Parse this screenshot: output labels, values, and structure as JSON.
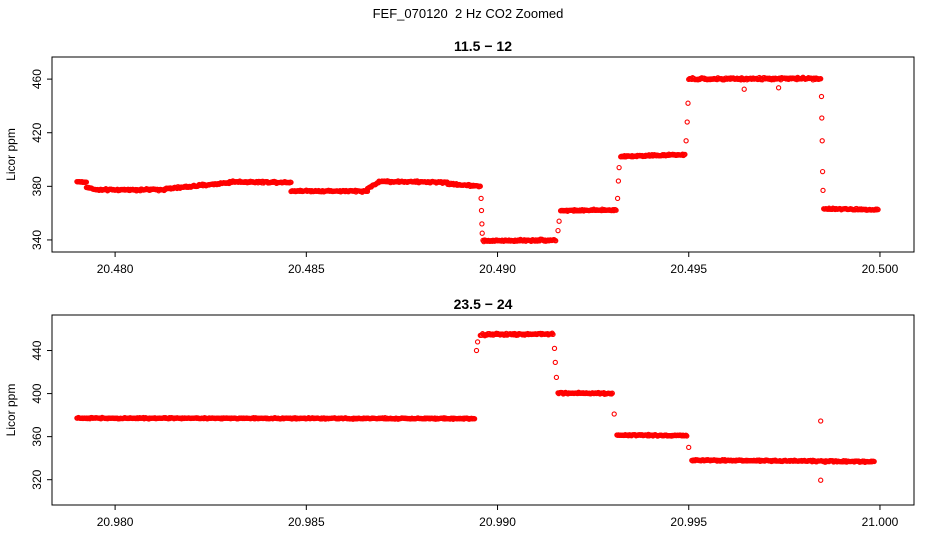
{
  "figure_title": "FEF_070120  2 Hz CO2 Zoomed",
  "chart_data": [
    {
      "type": "scatter",
      "title": "11.5 − 12",
      "ylabel": "Licor ppm",
      "xlabel": "",
      "color": "#FF0000",
      "marker": "open-circle",
      "grid": false,
      "legend": false,
      "point_spacing": 2e-05,
      "xlim": [
        20.47835,
        20.50089
      ],
      "ylim": [
        331,
        476.5
      ],
      "xticks": [
        "20.480",
        "20.485",
        "20.490",
        "20.495",
        "20.500"
      ],
      "xtick_values": [
        20.48,
        20.485,
        20.49,
        20.495,
        20.5
      ],
      "yticks": [
        "340",
        "380",
        "420",
        "460"
      ],
      "ytick_values": [
        340,
        380,
        420,
        460
      ],
      "segments": [
        {
          "x0": 20.479,
          "x1": 20.47925,
          "y0": 383.5,
          "y1": 383.0,
          "jitter": 0.8
        },
        {
          "x0": 20.47925,
          "x1": 20.4795,
          "y0": 379.5,
          "y1": 377.5,
          "jitter": 0.9
        },
        {
          "x0": 20.4795,
          "x1": 20.4813,
          "y0": 377.3,
          "y1": 377.6,
          "jitter": 1.2
        },
        {
          "x0": 20.4813,
          "x1": 20.483,
          "y0": 378.0,
          "y1": 382.8,
          "jitter": 1.2
        },
        {
          "x0": 20.483,
          "x1": 20.4846,
          "y0": 383.4,
          "y1": 383.0,
          "jitter": 1.1
        },
        {
          "x0": 20.4846,
          "x1": 20.4866,
          "y0": 376.6,
          "y1": 376.4,
          "jitter": 1.1
        },
        {
          "x0": 20.4866,
          "x1": 20.4869,
          "y0": 378.5,
          "y1": 383.0,
          "jitter": 0.8
        },
        {
          "x0": 20.4869,
          "x1": 20.4887,
          "y0": 383.7,
          "y1": 383.0,
          "jitter": 1.1
        },
        {
          "x0": 20.4887,
          "x1": 20.48955,
          "y0": 381.8,
          "y1": 380.2,
          "jitter": 1.1
        },
        {
          "x0": 20.48962,
          "x1": 20.49152,
          "y0": 339.3,
          "y1": 339.9,
          "jitter": 1.2
        },
        {
          "x0": 20.49165,
          "x1": 20.4931,
          "y0": 361.9,
          "y1": 362.3,
          "jitter": 1.0
        },
        {
          "x0": 20.49322,
          "x1": 20.4949,
          "y0": 402.4,
          "y1": 403.6,
          "jitter": 1.1
        },
        {
          "x0": 20.495,
          "x1": 20.49845,
          "y0": 460.0,
          "y1": 460.5,
          "jitter": 1.4
        },
        {
          "x0": 20.49853,
          "x1": 20.49995,
          "y0": 363.2,
          "y1": 362.6,
          "jitter": 1.0
        }
      ],
      "outliers": [
        [
          20.48957,
          371
        ],
        [
          20.48958,
          362
        ],
        [
          20.48959,
          352
        ],
        [
          20.4896,
          345
        ],
        [
          20.49158,
          347
        ],
        [
          20.49161,
          354
        ],
        [
          20.49314,
          371
        ],
        [
          20.49316,
          384
        ],
        [
          20.49318,
          394
        ],
        [
          20.49493,
          414
        ],
        [
          20.49496,
          428
        ],
        [
          20.49498,
          442
        ],
        [
          20.49645,
          452.5
        ],
        [
          20.49735,
          453.5
        ],
        [
          20.49847,
          447
        ],
        [
          20.49848,
          431
        ],
        [
          20.49849,
          414
        ],
        [
          20.4985,
          391
        ],
        [
          20.49851,
          377
        ]
      ]
    },
    {
      "type": "scatter",
      "title": "23.5 − 24",
      "ylabel": "Licor ppm",
      "xlabel": "",
      "color": "#FF0000",
      "marker": "open-circle",
      "grid": false,
      "legend": false,
      "point_spacing": 2e-05,
      "xlim": [
        20.97835,
        21.00089
      ],
      "ylim": [
        296.5,
        473
      ],
      "xticks": [
        "20.980",
        "20.985",
        "20.990",
        "20.995",
        "21.000"
      ],
      "xtick_values": [
        20.98,
        20.985,
        20.99,
        20.995,
        21.0
      ],
      "yticks": [
        "320",
        "360",
        "400",
        "440"
      ],
      "ytick_values": [
        320,
        360,
        400,
        440
      ],
      "segments": [
        {
          "x0": 20.979,
          "x1": 20.9894,
          "y0": 377.2,
          "y1": 376.8,
          "jitter": 1.0
        },
        {
          "x0": 20.98955,
          "x1": 20.99145,
          "y0": 454.8,
          "y1": 455.4,
          "jitter": 1.6
        },
        {
          "x0": 20.99158,
          "x1": 20.993,
          "y0": 400.6,
          "y1": 400.0,
          "jitter": 1.1
        },
        {
          "x0": 20.99312,
          "x1": 20.99495,
          "y0": 361.6,
          "y1": 361.0,
          "jitter": 1.1
        },
        {
          "x0": 20.99508,
          "x1": 20.99985,
          "y0": 338.2,
          "y1": 336.8,
          "jitter": 1.1
        }
      ],
      "outliers": [
        [
          20.98945,
          440
        ],
        [
          20.98948,
          448
        ],
        [
          20.99149,
          442
        ],
        [
          20.99151,
          429
        ],
        [
          20.99154,
          415
        ],
        [
          20.99305,
          381
        ],
        [
          20.995,
          350
        ],
        [
          20.99845,
          374.5
        ],
        [
          20.99845,
          319.5
        ]
      ]
    }
  ]
}
